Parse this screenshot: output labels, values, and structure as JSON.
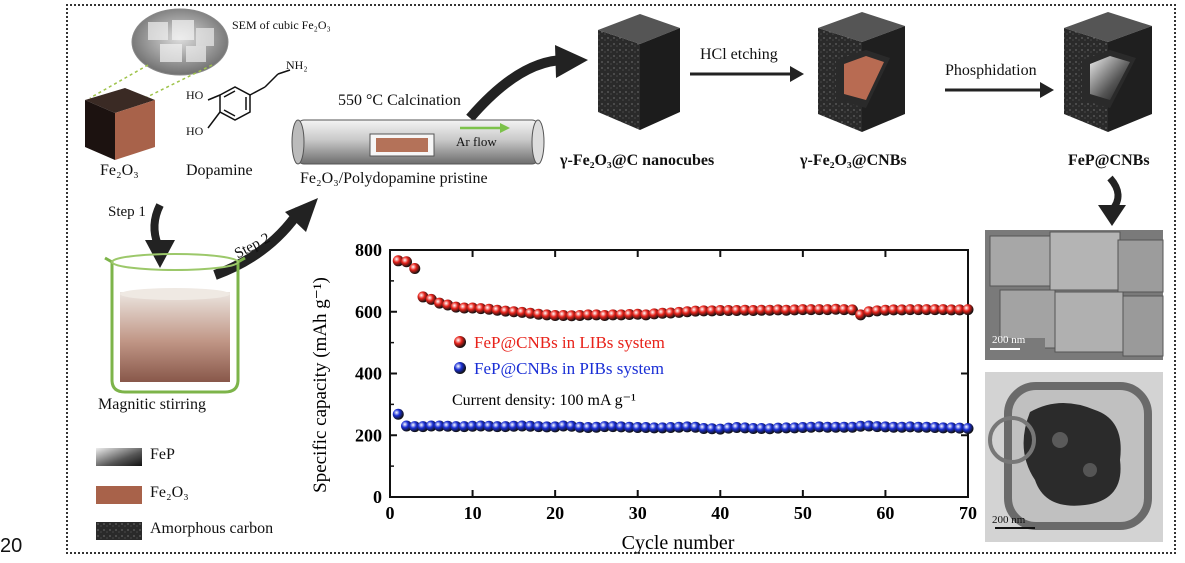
{
  "page_number": "20",
  "labels": {
    "sem_caption": "SEM of cubic Fe₂O₃",
    "fe2o3": "Fe₂O₃",
    "dopamine": "Dopamine",
    "nh2": "NH₂",
    "ho_top": "HO",
    "ho_bottom": "HO",
    "step1": "Step 1",
    "step2": "Step 2",
    "calcination": "550 °C Calcination",
    "ar_flow": "Ar flow",
    "pristine": "Fe₂O₃/Polydopamine pristine",
    "hcl": "HCl etching",
    "phosphidation": "Phosphidation",
    "nanocubes": "γ-Fe₂O₃@C nanocubes",
    "cnbs": "γ-Fe₂O₃@CNBs",
    "fep_cnbs": "FeP@CNBs",
    "stirring": "Magnitic stirring",
    "scale_bar_top": "200 nm",
    "scale_bar_bottom": "200 nm"
  },
  "legend": [
    {
      "label": "FeP",
      "icon": "fep-swatch"
    },
    {
      "label": "Fe₂O₃",
      "icon": "fe2o3-swatch"
    },
    {
      "label": "Amorphous carbon",
      "icon": "carbon-swatch"
    }
  ],
  "colors": {
    "red_series": "#e8221a",
    "blue_series": "#1a2fd6",
    "fe2o3_brown": "#a8624a",
    "carbon_dark": "#2b2b2b",
    "arrow_green": "#7cc24a"
  },
  "chart_data": {
    "type": "scatter",
    "xlabel": "Cycle number",
    "ylabel": "Specific capacity (mAh g⁻¹)",
    "xlim": [
      0,
      70
    ],
    "ylim": [
      0,
      800
    ],
    "xticks": [
      0,
      10,
      20,
      30,
      40,
      50,
      60,
      70
    ],
    "yticks": [
      0,
      200,
      400,
      600,
      800
    ],
    "annotation": "Current density: 100 mA g⁻¹",
    "legend_position": "center-left",
    "series": [
      {
        "name": "FeP@CNBs in LIBs system",
        "color": "#e8221a",
        "x": [
          1,
          2,
          3,
          4,
          5,
          6,
          7,
          8,
          9,
          10,
          11,
          12,
          13,
          14,
          15,
          16,
          17,
          18,
          19,
          20,
          21,
          22,
          23,
          24,
          25,
          26,
          27,
          28,
          29,
          30,
          31,
          32,
          33,
          34,
          35,
          36,
          37,
          38,
          39,
          40,
          41,
          42,
          43,
          44,
          45,
          46,
          47,
          48,
          49,
          50,
          51,
          52,
          53,
          54,
          55,
          56,
          57,
          58,
          59,
          60,
          61,
          62,
          63,
          64,
          65,
          66,
          67,
          68,
          69,
          70
        ],
        "values": [
          765,
          762,
          740,
          648,
          640,
          628,
          622,
          615,
          612,
          612,
          610,
          608,
          605,
          602,
          600,
          598,
          595,
          592,
          590,
          588,
          588,
          587,
          588,
          590,
          590,
          588,
          590,
          590,
          591,
          592,
          590,
          593,
          595,
          596,
          598,
          600,
          602,
          603,
          603,
          604,
          604,
          604,
          605,
          604,
          605,
          605,
          606,
          605,
          606,
          607,
          607,
          607,
          607,
          608,
          607,
          606,
          590,
          600,
          603,
          605,
          606,
          606,
          607,
          607,
          607,
          607,
          607,
          606,
          606,
          607
        ]
      },
      {
        "name": "FeP@CNBs in PIBs system",
        "color": "#1a2fd6",
        "x": [
          1,
          2,
          3,
          4,
          5,
          6,
          7,
          8,
          9,
          10,
          11,
          12,
          13,
          14,
          15,
          16,
          17,
          18,
          19,
          20,
          21,
          22,
          23,
          24,
          25,
          26,
          27,
          28,
          29,
          30,
          31,
          32,
          33,
          34,
          35,
          36,
          37,
          38,
          39,
          40,
          41,
          42,
          43,
          44,
          45,
          46,
          47,
          48,
          49,
          50,
          51,
          52,
          53,
          54,
          55,
          56,
          57,
          58,
          59,
          60,
          61,
          62,
          63,
          64,
          65,
          66,
          67,
          68,
          69,
          70
        ],
        "values": [
          268,
          230,
          228,
          228,
          230,
          230,
          229,
          228,
          228,
          229,
          230,
          229,
          228,
          228,
          229,
          230,
          229,
          228,
          227,
          227,
          230,
          229,
          226,
          225,
          226,
          228,
          228,
          227,
          226,
          225,
          225,
          224,
          224,
          225,
          226,
          227,
          226,
          222,
          221,
          220,
          223,
          225,
          224,
          222,
          222,
          221,
          223,
          224,
          224,
          225,
          226,
          227,
          226,
          226,
          226,
          226,
          229,
          230,
          228,
          227,
          226,
          226,
          227,
          226,
          226,
          225,
          224,
          224,
          223,
          222
        ]
      }
    ]
  }
}
